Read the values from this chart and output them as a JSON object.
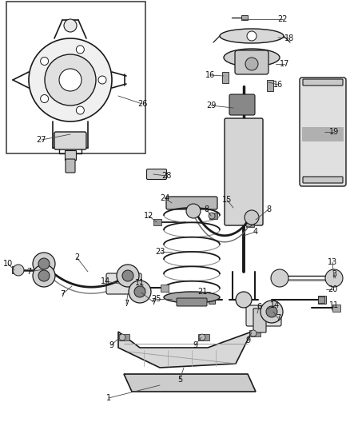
{
  "bg_color": "#ffffff",
  "line_color": "#1a1a1a",
  "label_color": "#111111",
  "figsize": [
    4.38,
    5.33
  ],
  "dpi": 100,
  "xlim": [
    0,
    438
  ],
  "ylim": [
    0,
    533
  ]
}
